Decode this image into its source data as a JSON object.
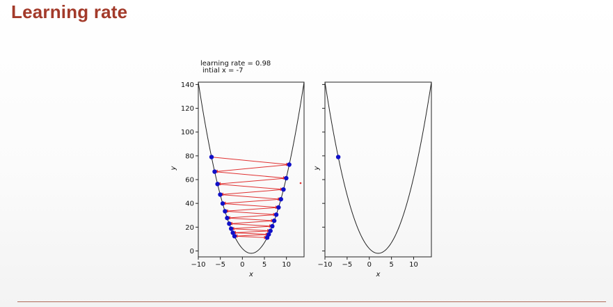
{
  "slide": {
    "title": "Learning rate",
    "corner_text": ""
  },
  "annotation": {
    "line1": "learning rate = 0.98",
    "line2": "intial x = -7"
  },
  "colors": {
    "title": "#a33a2a",
    "curve": "#222222",
    "point": "#1010c8",
    "arrow": "#e03030"
  },
  "chart_data": [
    {
      "type": "line",
      "function": "y = (x - 2)^2 - 2",
      "xlabel": "x",
      "ylabel": "y",
      "xlim": [
        -10,
        14
      ],
      "ylim": [
        -5,
        142
      ],
      "xticks": [
        -10,
        -5,
        0,
        5,
        10
      ],
      "yticks": [
        0,
        20,
        40,
        60,
        80,
        100,
        120,
        140
      ],
      "grid": false,
      "series": [
        {
          "kind": "gradient-descent-steps",
          "x": [
            -7,
            10.64,
            -6.29,
            9.96,
            -5.64,
            9.33,
            -5.03,
            8.75,
            -4.47,
            8.21,
            -3.94,
            7.7,
            -3.45,
            7.23,
            -2.99,
            6.79,
            -2.55,
            6.37,
            -2.16,
            5.99,
            -1.79,
            5.64
          ],
          "y": [
            79,
            72.6,
            66.7,
            61.2,
            56.3,
            51.7,
            47.4,
            43.5,
            39.9,
            36.6,
            33.4,
            30.5,
            27.7,
            25.4,
            22.9,
            20.8,
            18.7,
            16.9,
            15.3,
            13.9,
            12.4,
            11.2
          ]
        }
      ]
    },
    {
      "type": "line",
      "function": "y = (x - 2)^2 - 2",
      "xlabel": "x",
      "ylabel": "y",
      "xlim": [
        -10,
        14
      ],
      "ylim": [
        -5,
        142
      ],
      "xticks": [
        -10,
        -5,
        0,
        5,
        10
      ],
      "yticks": [],
      "grid": false,
      "series": [
        {
          "kind": "current-point",
          "x": [
            -7
          ],
          "y": [
            79
          ]
        }
      ]
    }
  ]
}
